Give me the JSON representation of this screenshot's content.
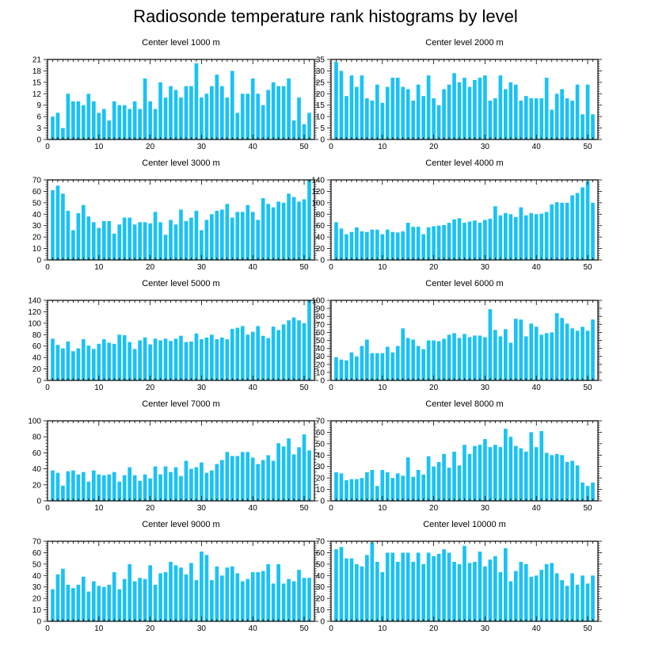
{
  "title": "Radiosonde temperature rank histograms by level",
  "colors": {
    "bar": "#1ac2f5",
    "axis": "#000000",
    "background": "#ffffff"
  },
  "chart_data": [
    {
      "type": "bar",
      "title": "Center level 1000 m",
      "xlim": [
        0,
        52
      ],
      "xticks": [
        0,
        10,
        20,
        30,
        40,
        50
      ],
      "ylim": [
        0,
        21
      ],
      "yticks": [
        0,
        3,
        6,
        9,
        12,
        15,
        18,
        21
      ],
      "values": [
        6,
        7,
        3,
        12,
        10,
        10,
        9,
        12,
        10,
        7,
        8,
        5,
        10,
        9,
        9,
        8,
        10,
        8,
        16,
        10,
        8,
        15,
        11,
        14,
        13,
        11,
        14,
        14,
        20,
        11,
        12,
        14,
        17,
        14,
        11,
        18,
        7,
        12,
        12,
        16,
        12,
        9,
        13,
        15,
        14,
        14,
        16,
        5,
        11,
        4,
        7
      ]
    },
    {
      "type": "bar",
      "title": "Center level 2000 m",
      "xlim": [
        0,
        52
      ],
      "xticks": [
        0,
        10,
        20,
        30,
        40,
        50
      ],
      "ylim": [
        0,
        35
      ],
      "yticks": [
        0,
        5,
        10,
        15,
        20,
        25,
        30,
        35
      ],
      "values": [
        34,
        30,
        19,
        28,
        23,
        28,
        18,
        17,
        24,
        16,
        23,
        27,
        27,
        23,
        22,
        17,
        24,
        19,
        28,
        18,
        15,
        22,
        24,
        29,
        25,
        27,
        23,
        26,
        27,
        28,
        17,
        18,
        28,
        22,
        25,
        24,
        17,
        19,
        18,
        18,
        18,
        27,
        13,
        20,
        22,
        18,
        17,
        24,
        11,
        24,
        11
      ]
    },
    {
      "type": "bar",
      "title": "Center level 3000 m",
      "xlim": [
        0,
        52
      ],
      "xticks": [
        0,
        10,
        20,
        30,
        40,
        50
      ],
      "ylim": [
        0,
        70
      ],
      "yticks": [
        0,
        10,
        20,
        30,
        40,
        50,
        60,
        70
      ],
      "values": [
        61,
        65,
        58,
        43,
        26,
        41,
        48,
        38,
        33,
        28,
        34,
        34,
        23,
        31,
        37,
        37,
        31,
        33,
        33,
        32,
        42,
        33,
        22,
        35,
        31,
        44,
        34,
        37,
        43,
        26,
        35,
        40,
        43,
        44,
        49,
        37,
        42,
        42,
        48,
        42,
        35,
        54,
        49,
        46,
        51,
        50,
        58,
        55,
        51,
        53,
        70
      ]
    },
    {
      "type": "bar",
      "title": "Center level 4000 m",
      "xlim": [
        0,
        52
      ],
      "xticks": [
        0,
        10,
        20,
        30,
        40,
        50
      ],
      "ylim": [
        0,
        140
      ],
      "yticks": [
        0,
        20,
        40,
        60,
        80,
        100,
        120,
        140
      ],
      "values": [
        66,
        55,
        45,
        49,
        57,
        50,
        49,
        53,
        53,
        45,
        53,
        49,
        48,
        50,
        65,
        58,
        58,
        45,
        57,
        59,
        60,
        61,
        65,
        71,
        73,
        65,
        67,
        69,
        65,
        70,
        72,
        94,
        78,
        82,
        80,
        75,
        92,
        78,
        82,
        80,
        81,
        84,
        97,
        101,
        100,
        100,
        113,
        117,
        127,
        138,
        100
      ]
    },
    {
      "type": "bar",
      "title": "Center level 5000 m",
      "xlim": [
        0,
        52
      ],
      "xticks": [
        0,
        10,
        20,
        30,
        40,
        50
      ],
      "ylim": [
        0,
        140
      ],
      "yticks": [
        0,
        20,
        40,
        60,
        80,
        100,
        120,
        140
      ],
      "values": [
        73,
        62,
        56,
        68,
        51,
        56,
        72,
        61,
        55,
        64,
        72,
        66,
        64,
        80,
        79,
        67,
        55,
        70,
        75,
        63,
        73,
        70,
        73,
        69,
        73,
        78,
        67,
        68,
        82,
        72,
        75,
        80,
        72,
        75,
        72,
        90,
        92,
        95,
        80,
        85,
        95,
        78,
        74,
        94,
        88,
        98,
        105,
        110,
        105,
        100,
        140
      ]
    },
    {
      "type": "bar",
      "title": "Center level 6000 m",
      "xlim": [
        0,
        52
      ],
      "xticks": [
        0,
        10,
        20,
        30,
        40,
        50
      ],
      "ylim": [
        0,
        100
      ],
      "yticks": [
        0,
        10,
        20,
        30,
        40,
        50,
        60,
        70,
        80,
        90,
        100
      ],
      "values": [
        29,
        26,
        25,
        35,
        30,
        43,
        51,
        34,
        34,
        34,
        42,
        35,
        43,
        65,
        53,
        51,
        43,
        39,
        50,
        50,
        49,
        52,
        57,
        59,
        53,
        58,
        54,
        56,
        56,
        54,
        89,
        63,
        55,
        64,
        47,
        77,
        76,
        55,
        71,
        67,
        57,
        59,
        60,
        84,
        78,
        71,
        65,
        62,
        67,
        62,
        76
      ]
    },
    {
      "type": "bar",
      "title": "Center level 7000 m",
      "xlim": [
        0,
        52
      ],
      "xticks": [
        0,
        10,
        20,
        30,
        40,
        50
      ],
      "ylim": [
        0,
        100
      ],
      "yticks": [
        0,
        20,
        40,
        60,
        80,
        100
      ],
      "values": [
        38,
        35,
        19,
        37,
        38,
        33,
        36,
        24,
        38,
        33,
        32,
        33,
        36,
        24,
        32,
        42,
        32,
        25,
        33,
        28,
        43,
        33,
        43,
        36,
        42,
        31,
        50,
        40,
        42,
        48,
        35,
        38,
        46,
        51,
        61,
        56,
        56,
        61,
        61,
        54,
        46,
        51,
        57,
        50,
        72,
        68,
        78,
        58,
        67,
        83,
        63
      ]
    },
    {
      "type": "bar",
      "title": "Center level 8000 m",
      "xlim": [
        0,
        52
      ],
      "xticks": [
        0,
        10,
        20,
        30,
        40,
        50
      ],
      "ylim": [
        0,
        70
      ],
      "yticks": [
        0,
        10,
        20,
        30,
        40,
        50,
        60,
        70
      ],
      "values": [
        25,
        24,
        18,
        19,
        19,
        20,
        25,
        27,
        13,
        27,
        25,
        20,
        24,
        22,
        38,
        21,
        27,
        23,
        39,
        30,
        34,
        41,
        29,
        43,
        31,
        49,
        41,
        48,
        49,
        54,
        47,
        49,
        47,
        63,
        56,
        48,
        46,
        43,
        60,
        47,
        61,
        42,
        40,
        41,
        40,
        34,
        35,
        31,
        16,
        13,
        16
      ]
    },
    {
      "type": "bar",
      "title": "Center level 9000 m",
      "xlim": [
        0,
        52
      ],
      "xticks": [
        0,
        10,
        20,
        30,
        40,
        50
      ],
      "ylim": [
        0,
        70
      ],
      "yticks": [
        0,
        10,
        20,
        30,
        40,
        50,
        60,
        70
      ],
      "values": [
        28,
        41,
        46,
        32,
        29,
        32,
        39,
        26,
        35,
        31,
        30,
        32,
        43,
        28,
        37,
        50,
        35,
        38,
        37,
        49,
        32,
        42,
        43,
        52,
        49,
        47,
        41,
        51,
        36,
        61,
        58,
        36,
        48,
        40,
        47,
        48,
        42,
        35,
        37,
        43,
        43,
        44,
        50,
        33,
        50,
        33,
        37,
        35,
        45,
        38,
        38
      ]
    },
    {
      "type": "bar",
      "title": "Center level 10000 m",
      "xlim": [
        0,
        52
      ],
      "xticks": [
        0,
        10,
        20,
        30,
        40,
        50
      ],
      "ylim": [
        0,
        70
      ],
      "yticks": [
        0,
        10,
        20,
        30,
        40,
        50,
        60,
        70
      ],
      "values": [
        63,
        65,
        55,
        55,
        50,
        48,
        58,
        69,
        52,
        43,
        60,
        60,
        52,
        60,
        60,
        52,
        60,
        50,
        60,
        57,
        59,
        63,
        60,
        52,
        50,
        66,
        51,
        52,
        61,
        48,
        54,
        57,
        43,
        64,
        35,
        44,
        52,
        50,
        39,
        40,
        45,
        50,
        51,
        42,
        36,
        31,
        42,
        32,
        40,
        33,
        40
      ]
    }
  ]
}
